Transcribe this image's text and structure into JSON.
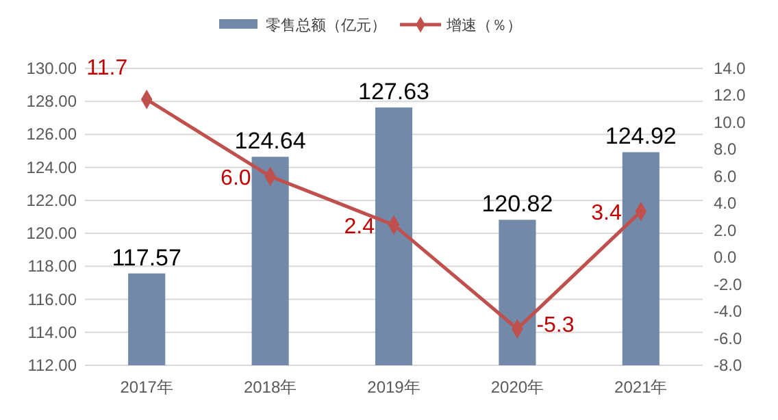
{
  "chart_data": {
    "type": "bar",
    "categories": [
      "2017年",
      "2018年",
      "2019年",
      "2020年",
      "2021年"
    ],
    "series": [
      {
        "name": "零售总额（亿元）",
        "color": "#7289a9",
        "values": [
          117.57,
          124.64,
          127.63,
          120.82,
          124.92
        ],
        "value_labels": [
          "117.57",
          "124.64",
          "127.63",
          "120.82",
          "124.92"
        ]
      },
      {
        "name": "增速（％）",
        "type": "line",
        "axis": "y2",
        "color": "#c0504d",
        "marker": "diamond",
        "values": [
          11.7,
          6.0,
          2.4,
          -5.3,
          3.4
        ],
        "value_labels": [
          "11.7",
          "6.0",
          "2.4",
          "-5.3",
          "3.4"
        ]
      }
    ],
    "ylim": [
      112,
      130
    ],
    "yticks": [
      {
        "value": 112,
        "label": "112.00"
      },
      {
        "value": 114,
        "label": "114.00"
      },
      {
        "value": 116,
        "label": "116.00"
      },
      {
        "value": 118,
        "label": "118.00"
      },
      {
        "value": 120,
        "label": "120.00"
      },
      {
        "value": 122,
        "label": "122.00"
      },
      {
        "value": 124,
        "label": "124.00"
      },
      {
        "value": 126,
        "label": "126.00"
      },
      {
        "value": 128,
        "label": "128.00"
      },
      {
        "value": 130,
        "label": "130.00"
      }
    ],
    "y2lim": [
      -8,
      14
    ],
    "y2ticks": [
      {
        "value": -8,
        "label": "-8.0"
      },
      {
        "value": -6,
        "label": "-6.0"
      },
      {
        "value": -4,
        "label": "-4.0"
      },
      {
        "value": -2,
        "label": "-2.0"
      },
      {
        "value": 0,
        "label": "0.0"
      },
      {
        "value": 2,
        "label": "2.0"
      },
      {
        "value": 4,
        "label": "4.0"
      },
      {
        "value": 6,
        "label": "6.0"
      },
      {
        "value": 8,
        "label": "8.0"
      },
      {
        "value": 10,
        "label": "10.0"
      },
      {
        "value": 12,
        "label": "12.0"
      },
      {
        "value": 14,
        "label": "14.0"
      }
    ],
    "grid": "y",
    "legend": "top"
  }
}
